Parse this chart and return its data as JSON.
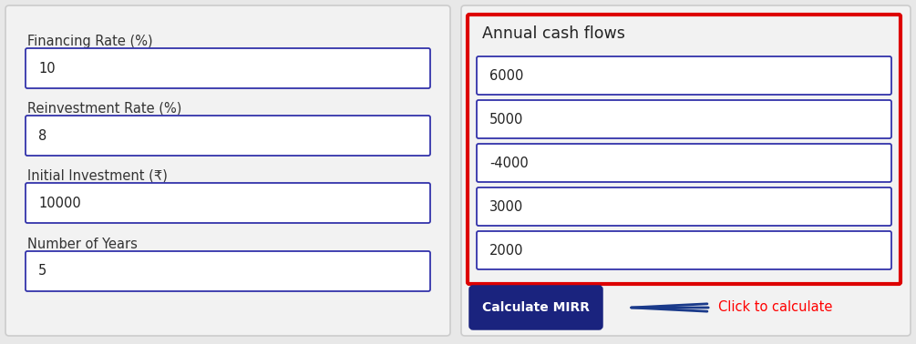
{
  "bg_color": "#e8e8e8",
  "panel_bg": "#f2f2f2",
  "panel_border": "#cccccc",
  "input_border_color": "#3333aa",
  "input_bg": "#ffffff",
  "left_labels": [
    "Financing Rate (%)",
    "Reinvestment Rate (%)",
    "Initial Investment (₹)",
    "Number of Years"
  ],
  "left_values": [
    "10",
    "8",
    "10000",
    "5"
  ],
  "right_title": "Annual cash flows",
  "right_values": [
    "6000",
    "5000",
    "-4000",
    "3000",
    "2000"
  ],
  "right_panel_border_color": "#dd0000",
  "button_text": "Calculate MIRR",
  "button_bg": "#1a237e",
  "button_border": "#1a237e",
  "button_text_color": "#ffffff",
  "arrow_color": "#1a3a8a",
  "annotation_text": "Click to calculate",
  "annotation_color": "#ff0000",
  "label_fontsize": 10.5,
  "value_fontsize": 10.5,
  "title_fontsize": 12.5
}
